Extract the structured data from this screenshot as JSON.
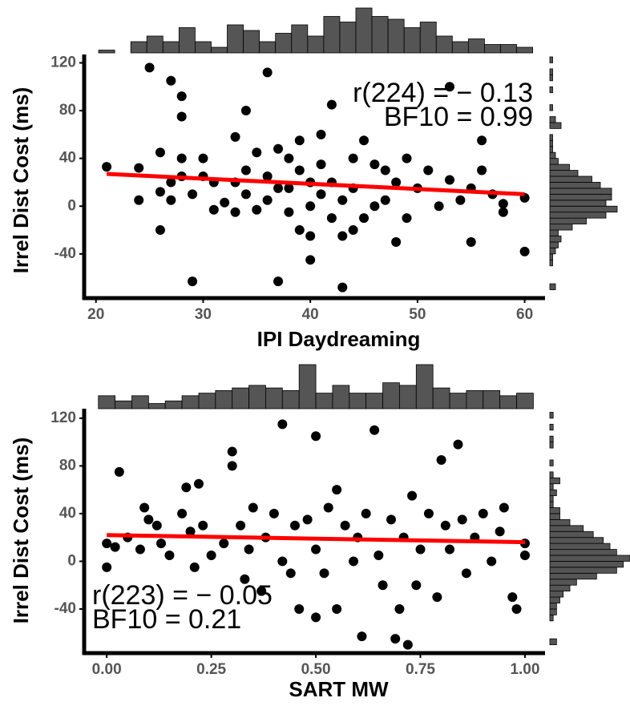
{
  "chart_data": [
    {
      "type": "scatter",
      "x_label": "IPI Daydreaming",
      "y_label": "Irrel Dist Cost (ms)",
      "annotation_r": "r(224) = − 0.13",
      "annotation_bf": "BF10 = 0.99",
      "xlim": [
        18.9,
        61.9
      ],
      "ylim": [
        -77,
        127
      ],
      "xticks": [
        20,
        30,
        40,
        50,
        60
      ],
      "yticks": [
        -40,
        0,
        40,
        80,
        120
      ],
      "point_color": "#000000",
      "points": {
        "x": [
          21,
          24,
          24,
          25,
          26,
          26,
          26,
          27,
          27,
          27,
          28,
          28,
          28,
          28,
          29,
          29,
          30,
          30,
          31,
          31,
          32,
          33,
          33,
          33,
          34,
          34,
          34,
          35,
          35,
          36,
          36,
          36,
          37,
          37,
          37,
          38,
          38,
          38,
          39,
          39,
          39,
          40,
          40,
          40,
          40,
          41,
          41,
          41,
          42,
          42,
          42,
          43,
          43,
          43,
          44,
          44,
          44,
          45,
          45,
          46,
          46,
          47,
          47,
          48,
          48,
          49,
          49,
          50,
          51,
          52,
          53,
          53,
          54,
          55,
          55,
          56,
          56,
          57,
          58,
          58,
          60,
          60
        ],
        "y": [
          33,
          32,
          5,
          116,
          -20,
          12,
          45,
          105,
          20,
          5,
          92,
          75,
          40,
          25,
          -63,
          10,
          40,
          25,
          20,
          -3,
          3,
          58,
          20,
          -5,
          80,
          30,
          10,
          45,
          -3,
          112,
          25,
          5,
          -63,
          48,
          15,
          40,
          15,
          -5,
          55,
          30,
          -20,
          -45,
          20,
          0,
          -25,
          10,
          35,
          60,
          85,
          20,
          -10,
          -68,
          -25,
          5,
          40,
          15,
          -20,
          55,
          -10,
          35,
          0,
          30,
          5,
          20,
          -30,
          -10,
          40,
          15,
          30,
          0,
          100,
          22,
          5,
          -30,
          15,
          55,
          30,
          10,
          -5,
          2,
          7,
          -38
        ]
      },
      "fit": {
        "color": "#ff0000",
        "x": [
          21,
          60
        ],
        "y": [
          27,
          10
        ]
      },
      "hist_color": "#555555",
      "top_hist": {
        "bins": [
          20.25,
          21.75,
          23.25,
          24.75,
          26.25,
          27.75,
          29.25,
          30.75,
          32.25,
          33.75,
          35.25,
          36.75,
          38.25,
          39.75,
          41.25,
          42.75,
          44.25,
          45.75,
          47.25,
          48.75,
          50.25,
          51.75,
          53.25,
          54.75,
          56.25,
          57.75,
          59.25,
          60.75
        ],
        "counts": [
          1,
          0,
          4,
          6,
          4,
          9,
          4,
          2,
          10,
          8,
          4,
          7,
          10,
          6,
          13,
          11,
          16,
          13,
          12,
          9,
          11,
          6,
          4,
          5,
          3,
          3,
          2
        ]
      },
      "right_hist": {
        "bins": [
          -70,
          -65,
          -60,
          -55,
          -50,
          -45,
          -40,
          -35,
          -30,
          -25,
          -20,
          -15,
          -10,
          -5,
          0,
          5,
          10,
          15,
          20,
          25,
          30,
          35,
          40,
          45,
          50,
          55,
          60,
          65,
          70,
          75,
          80,
          85,
          90,
          95,
          100,
          105,
          110,
          115,
          120,
          125
        ],
        "counts": [
          2,
          0,
          0,
          0,
          1,
          1,
          2,
          3,
          4,
          3,
          8,
          13,
          20,
          24,
          20,
          22,
          22,
          18,
          15,
          10,
          7,
          3,
          2,
          1,
          1,
          1,
          0,
          4,
          2,
          0,
          1,
          0,
          0,
          1,
          0,
          1,
          1,
          0,
          1
        ]
      }
    },
    {
      "type": "scatter",
      "x_label": "SART MW",
      "y_label": "Irrel Dist Cost (ms)",
      "annotation_r": "r(223) = − 0.05",
      "annotation_bf": "BF10 = 0.21",
      "xlim": [
        -0.054,
        1.048
      ],
      "ylim": [
        -77,
        128
      ],
      "xticks": [
        {
          "value": 0,
          "label": "0.00"
        },
        {
          "value": 0.25,
          "label": "0.25"
        },
        {
          "value": 0.5,
          "label": "0.50"
        },
        {
          "value": 0.75,
          "label": "0.75"
        },
        {
          "value": 1,
          "label": "1.00"
        }
      ],
      "yticks": [
        -40,
        0,
        40,
        80,
        120
      ],
      "point_color": "#000000",
      "points": {
        "x": [
          0,
          0,
          0.02,
          0.03,
          0.05,
          0.08,
          0.09,
          0.1,
          0.12,
          0.13,
          0.15,
          0.18,
          0.19,
          0.2,
          0.21,
          0.22,
          0.23,
          0.25,
          0.28,
          0.3,
          0.3,
          0.32,
          0.33,
          0.34,
          0.35,
          0.37,
          0.38,
          0.4,
          0.42,
          0.42,
          0.44,
          0.45,
          0.46,
          0.48,
          0.5,
          0.5,
          0.5,
          0.52,
          0.53,
          0.55,
          0.55,
          0.57,
          0.59,
          0.6,
          0.61,
          0.62,
          0.64,
          0.65,
          0.66,
          0.68,
          0.69,
          0.7,
          0.71,
          0.72,
          0.73,
          0.74,
          0.75,
          0.77,
          0.79,
          0.8,
          0.81,
          0.82,
          0.84,
          0.85,
          0.86,
          0.88,
          0.9,
          0.92,
          0.94,
          0.95,
          0.97,
          0.98,
          1,
          1
        ],
        "y": [
          15,
          -5,
          12,
          75,
          20,
          10,
          45,
          35,
          30,
          15,
          5,
          40,
          62,
          25,
          -5,
          65,
          30,
          5,
          15,
          92,
          80,
          30,
          -15,
          10,
          45,
          -25,
          20,
          40,
          115,
          0,
          -10,
          30,
          -40,
          35,
          -47,
          105,
          10,
          -10,
          45,
          60,
          -40,
          30,
          0,
          20,
          -63,
          40,
          110,
          5,
          -20,
          35,
          -65,
          -40,
          20,
          -70,
          55,
          -20,
          10,
          40,
          -30,
          85,
          30,
          10,
          98,
          35,
          -10,
          20,
          40,
          0,
          25,
          45,
          -30,
          -40,
          15,
          5
        ]
      },
      "fit": {
        "color": "#ff0000",
        "x": [
          0,
          1
        ],
        "y": [
          22,
          16
        ]
      },
      "hist_color": "#555555",
      "top_hist": {
        "bins": [
          -0.02,
          0.02,
          0.06,
          0.1,
          0.14,
          0.18,
          0.22,
          0.26,
          0.3,
          0.34,
          0.38,
          0.42,
          0.46,
          0.5,
          0.54,
          0.58,
          0.62,
          0.66,
          0.7,
          0.74,
          0.78,
          0.82,
          0.86,
          0.9,
          0.94,
          0.98,
          1.02
        ],
        "counts": [
          5,
          3,
          5,
          2,
          3,
          5,
          6,
          7,
          8,
          9,
          8,
          7,
          17,
          6,
          9,
          6,
          6,
          10,
          9,
          17,
          8,
          6,
          7,
          7,
          5,
          6
        ]
      },
      "right_hist": {
        "bins": [
          -70,
          -65,
          -60,
          -55,
          -50,
          -45,
          -40,
          -35,
          -30,
          -25,
          -20,
          -15,
          -10,
          -5,
          0,
          5,
          10,
          15,
          20,
          25,
          30,
          35,
          40,
          45,
          50,
          55,
          60,
          65,
          70,
          75,
          80,
          85,
          90,
          95,
          100,
          105,
          110,
          115,
          120,
          125
        ],
        "counts": [
          2,
          0,
          0,
          0,
          1,
          2,
          2,
          3,
          4,
          6,
          8,
          14,
          20,
          22,
          24,
          20,
          18,
          16,
          13,
          10,
          6,
          3,
          3,
          1,
          1,
          2,
          1,
          3,
          1,
          0,
          1,
          0,
          0,
          1,
          1,
          0,
          1,
          0,
          1
        ]
      }
    }
  ]
}
